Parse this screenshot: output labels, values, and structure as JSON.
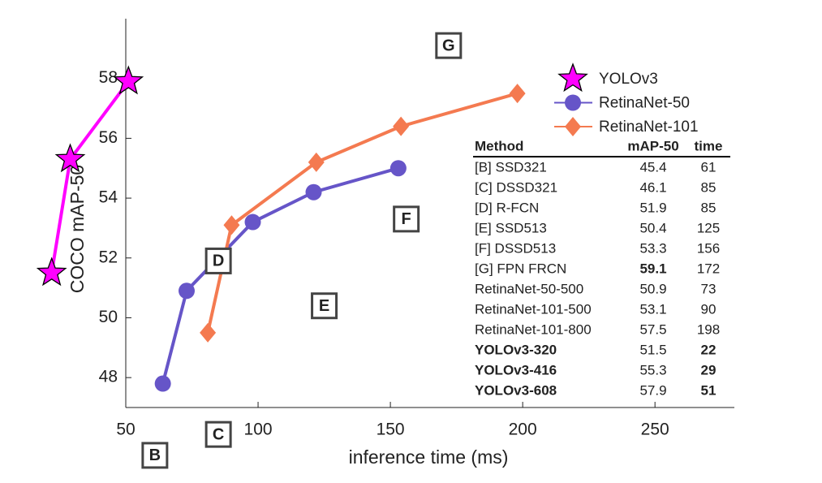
{
  "chart_data": {
    "type": "line",
    "xlabel": "inference time (ms)",
    "ylabel": "COCO mAP-50",
    "xlim": [
      50,
      280
    ],
    "xticks": [
      50,
      100,
      150,
      200,
      250
    ],
    "ylim": [
      47,
      60
    ],
    "yticks": [
      48,
      50,
      52,
      54,
      56,
      58
    ],
    "series": [
      {
        "name": "YOLOv3",
        "color": "#ff00ff",
        "marker": "star",
        "x": [
          22,
          29,
          51
        ],
        "values": [
          51.5,
          55.3,
          57.9
        ]
      },
      {
        "name": "RetinaNet-50",
        "color": "#6655c8",
        "marker": "circle",
        "x": [
          64,
          73,
          98,
          121,
          153
        ],
        "values": [
          47.8,
          50.9,
          53.2,
          54.2,
          55.0
        ]
      },
      {
        "name": "RetinaNet-101",
        "color": "#f47a50",
        "marker": "diamond",
        "x": [
          81,
          90,
          122,
          154,
          198
        ],
        "values": [
          49.5,
          53.1,
          55.2,
          56.4,
          57.5
        ]
      }
    ],
    "boxed_labels": [
      "B",
      "C",
      "D",
      "E",
      "F",
      "G"
    ],
    "table": {
      "columns": [
        "Method",
        "mAP-50",
        "time"
      ],
      "rows": [
        [
          "[B] SSD321",
          45.4,
          61
        ],
        [
          "[C] DSSD321",
          46.1,
          85
        ],
        [
          "[D] R-FCN",
          51.9,
          85
        ],
        [
          "[E] SSD513",
          50.4,
          125
        ],
        [
          "[F] DSSD513",
          53.3,
          156
        ],
        [
          "[G] FPN FRCN",
          59.1,
          172
        ],
        [
          "RetinaNet-50-500",
          50.9,
          73
        ],
        [
          "RetinaNet-101-500",
          53.1,
          90
        ],
        [
          "RetinaNet-101-800",
          57.5,
          198
        ],
        [
          "YOLOv3-320",
          51.5,
          22
        ],
        [
          "YOLOv3-416",
          55.3,
          29
        ],
        [
          "YOLOv3-608",
          57.9,
          51
        ]
      ]
    }
  }
}
